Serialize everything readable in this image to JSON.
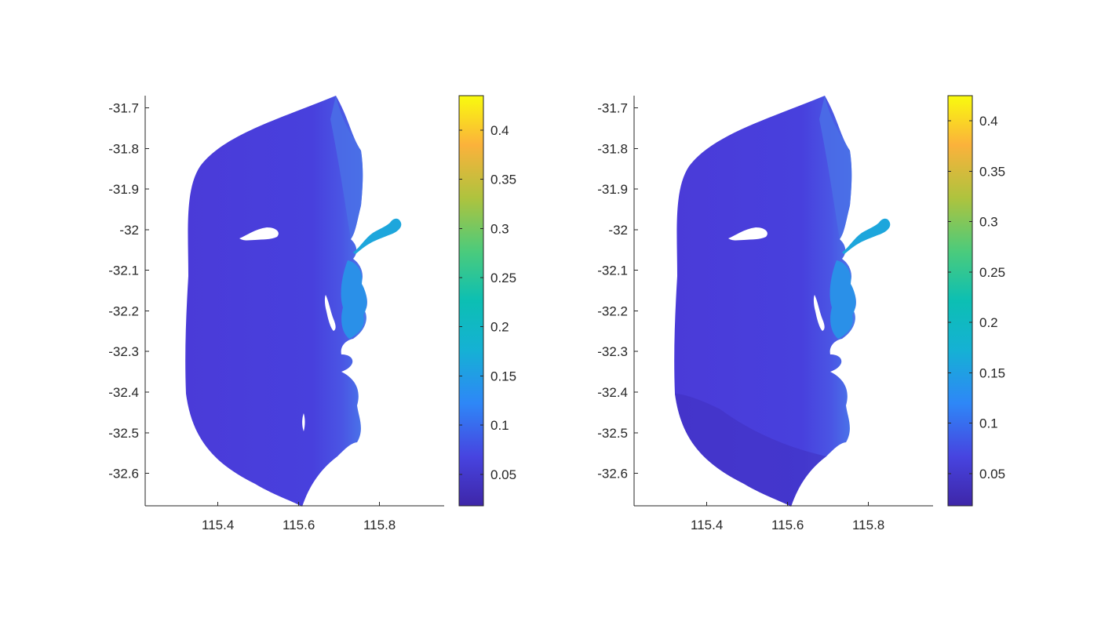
{
  "chart_data": [
    {
      "type": "heatmap",
      "title": "",
      "xlabel": "",
      "ylabel": "",
      "xlim": [
        115.22,
        115.96
      ],
      "ylim": [
        -32.68,
        -31.67
      ],
      "xticks": [
        115.4,
        115.6,
        115.8
      ],
      "xtick_labels": [
        "115.4",
        "115.6",
        "115.8"
      ],
      "yticks": [
        -31.7,
        -31.8,
        -31.9,
        -32,
        -32.1,
        -32.2,
        -32.3,
        -32.4,
        -32.5,
        -32.6
      ],
      "ytick_labels": [
        "-31.7",
        "-31.8",
        "-31.9",
        "-32",
        "-32.1",
        "-32.2",
        "-32.3",
        "-32.4",
        "-32.5",
        "-32.6"
      ],
      "grid": false,
      "colormap": "parula",
      "colorbar": {
        "clim": [
          0.018,
          0.435
        ],
        "ticks": [
          0.05,
          0.1,
          0.15,
          0.2,
          0.25,
          0.3,
          0.35,
          0.4
        ],
        "tick_labels": [
          "0.05",
          "0.1",
          "0.15",
          "0.2",
          "0.25",
          "0.3",
          "0.35",
          "0.4"
        ]
      },
      "field_estimate": {
        "offshore_value": 0.06,
        "nearshore_value": 0.1,
        "estuary_value": 0.16,
        "islands_masked": true
      }
    },
    {
      "type": "heatmap",
      "title": "",
      "xlabel": "",
      "ylabel": "",
      "xlim": [
        115.22,
        115.96
      ],
      "ylim": [
        -32.68,
        -31.67
      ],
      "xticks": [
        115.4,
        115.6,
        115.8
      ],
      "xtick_labels": [
        "115.4",
        "115.6",
        "115.8"
      ],
      "yticks": [
        -31.7,
        -31.8,
        -31.9,
        -32,
        -32.1,
        -32.2,
        -32.3,
        -32.4,
        -32.5,
        -32.6
      ],
      "ytick_labels": [
        "-31.7",
        "-31.8",
        "-31.9",
        "-32",
        "-32.1",
        "-32.2",
        "-32.3",
        "-32.4",
        "-32.5",
        "-32.6"
      ],
      "grid": false,
      "colormap": "parula",
      "colorbar": {
        "clim": [
          0.018,
          0.425
        ],
        "ticks": [
          0.05,
          0.1,
          0.15,
          0.2,
          0.25,
          0.3,
          0.35,
          0.4
        ],
        "tick_labels": [
          "0.05",
          "0.1",
          "0.15",
          "0.2",
          "0.25",
          "0.3",
          "0.35",
          "0.4"
        ]
      },
      "field_estimate": {
        "offshore_value": 0.055,
        "nearshore_value": 0.1,
        "estuary_value": 0.16,
        "islands_masked": true
      }
    }
  ]
}
